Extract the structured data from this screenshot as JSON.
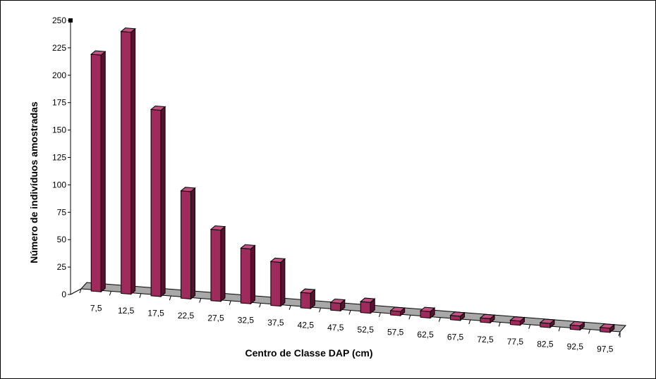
{
  "chart_data": {
    "type": "bar",
    "title": "",
    "xlabel": "Centro de Classe DAP (cm)",
    "ylabel": "Número de indivíduos amostradas",
    "ylim": [
      0,
      250
    ],
    "yticks": [
      "0",
      "25",
      "50",
      "75",
      "100",
      "125",
      "150",
      "175",
      "200",
      "225",
      "250"
    ],
    "categories": [
      "7,5",
      "12,5",
      "17,5",
      "22,5",
      "27,5",
      "32,5",
      "37,5",
      "42,5",
      "47,5",
      "52,5",
      "57,5",
      "62,5",
      "67,5",
      "72,5",
      "77,5",
      "82,5",
      "92,5",
      "97,5"
    ],
    "values": [
      216,
      239,
      170,
      98,
      65,
      50,
      40,
      14,
      7,
      10,
      3,
      6,
      2,
      2,
      1,
      1,
      1,
      1
    ],
    "grid": false,
    "legend": "none",
    "colors": {
      "bar_front": "#9e2b5c",
      "bar_side": "#5a1030",
      "bar_top": "#c44f82",
      "floor": "#a8a8a8"
    }
  }
}
